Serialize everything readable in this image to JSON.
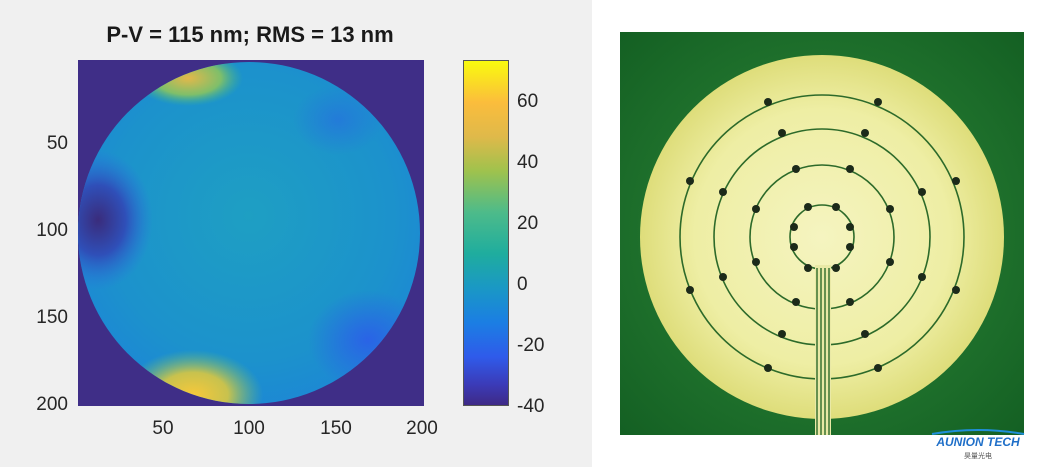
{
  "left_figure": {
    "title": "P-V = 115 nm; RMS = 13 nm",
    "y_ticks": [
      "50",
      "100",
      "150",
      "200"
    ],
    "x_ticks": [
      "50",
      "100",
      "150",
      "200"
    ],
    "colorbar_ticks": [
      "60",
      "40",
      "20",
      "0",
      "-20",
      "-40"
    ]
  },
  "logo": {
    "name": "AUNION TECH",
    "subtitle": "昊量光电"
  }
}
